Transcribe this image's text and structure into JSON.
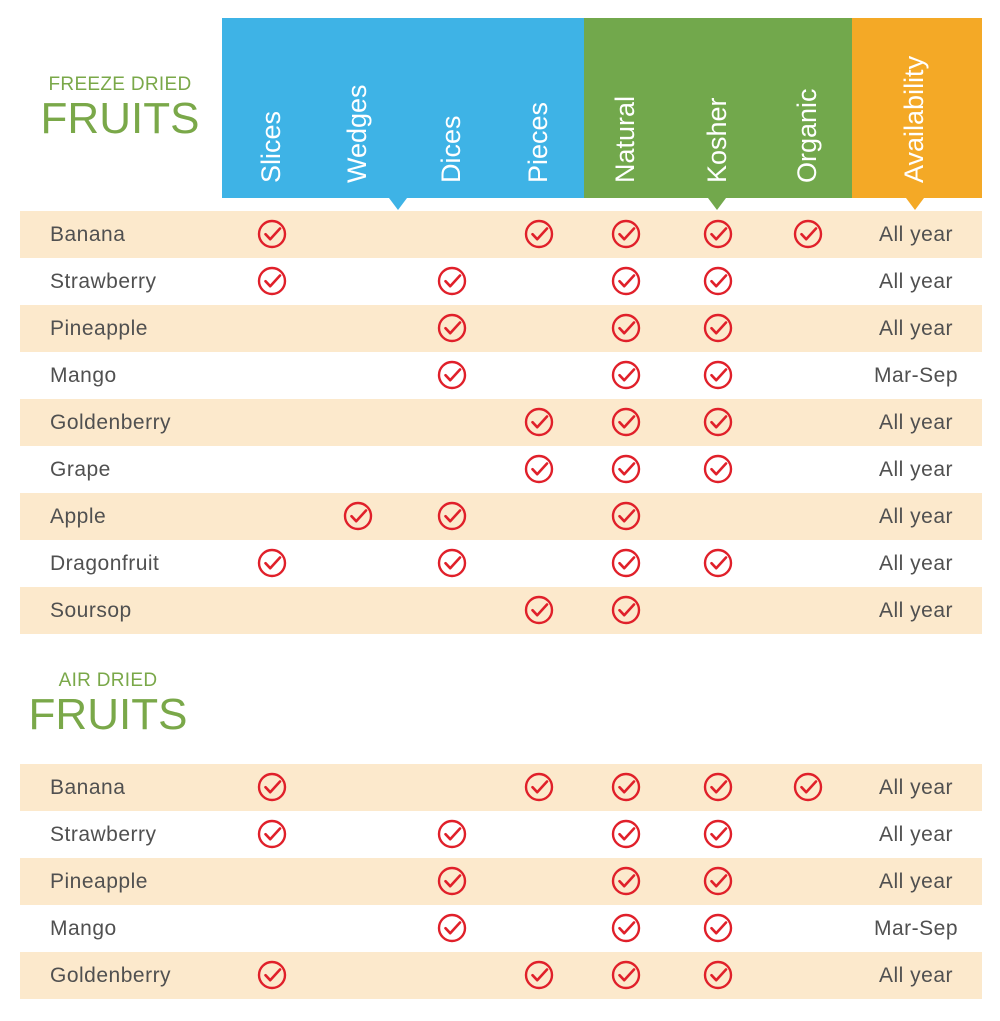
{
  "colors": {
    "blue": "#3eb3e6",
    "green": "#72a84c",
    "orange": "#f4a926",
    "check": "#e0202a",
    "title": "#7aa849",
    "shade": "#fce9cc"
  },
  "columns": [
    "Slices",
    "Wedges",
    "Dices",
    "Pieces",
    "Natural",
    "Kosher",
    "Organic",
    "Availability"
  ],
  "sections": [
    {
      "title_small": "FREEZE DRIED",
      "title_big": "FRUITS",
      "rows": [
        {
          "fruit": "Banana",
          "checks": [
            1,
            0,
            0,
            1,
            1,
            1,
            1
          ],
          "availability": "All year"
        },
        {
          "fruit": "Strawberry",
          "checks": [
            1,
            0,
            1,
            0,
            1,
            1,
            0
          ],
          "availability": "All year"
        },
        {
          "fruit": "Pineapple",
          "checks": [
            0,
            0,
            1,
            0,
            1,
            1,
            0
          ],
          "availability": "All year"
        },
        {
          "fruit": "Mango",
          "checks": [
            0,
            0,
            1,
            0,
            1,
            1,
            0
          ],
          "availability": "Mar-Sep"
        },
        {
          "fruit": "Goldenberry",
          "checks": [
            0,
            0,
            0,
            1,
            1,
            1,
            0
          ],
          "availability": "All year"
        },
        {
          "fruit": "Grape",
          "checks": [
            0,
            0,
            0,
            1,
            1,
            1,
            0
          ],
          "availability": "All year"
        },
        {
          "fruit": "Apple",
          "checks": [
            0,
            1,
            1,
            0,
            1,
            0,
            0
          ],
          "availability": "All year"
        },
        {
          "fruit": "Dragonfruit",
          "checks": [
            1,
            0,
            1,
            0,
            1,
            1,
            0
          ],
          "availability": "All year"
        },
        {
          "fruit": "Soursop",
          "checks": [
            0,
            0,
            0,
            1,
            1,
            0,
            0
          ],
          "availability": "All year"
        }
      ]
    },
    {
      "title_small": "AIR DRIED",
      "title_big": "FRUITS",
      "rows": [
        {
          "fruit": "Banana",
          "checks": [
            1,
            0,
            0,
            1,
            1,
            1,
            1
          ],
          "availability": "All year"
        },
        {
          "fruit": "Strawberry",
          "checks": [
            1,
            0,
            1,
            0,
            1,
            1,
            0
          ],
          "availability": "All year"
        },
        {
          "fruit": "Pineapple",
          "checks": [
            0,
            0,
            1,
            0,
            1,
            1,
            0
          ],
          "availability": "All year"
        },
        {
          "fruit": "Mango",
          "checks": [
            0,
            0,
            1,
            0,
            1,
            1,
            0
          ],
          "availability": "Mar-Sep"
        },
        {
          "fruit": "Goldenberry",
          "checks": [
            1,
            0,
            0,
            1,
            1,
            1,
            0
          ],
          "availability": "All year"
        }
      ]
    }
  ]
}
